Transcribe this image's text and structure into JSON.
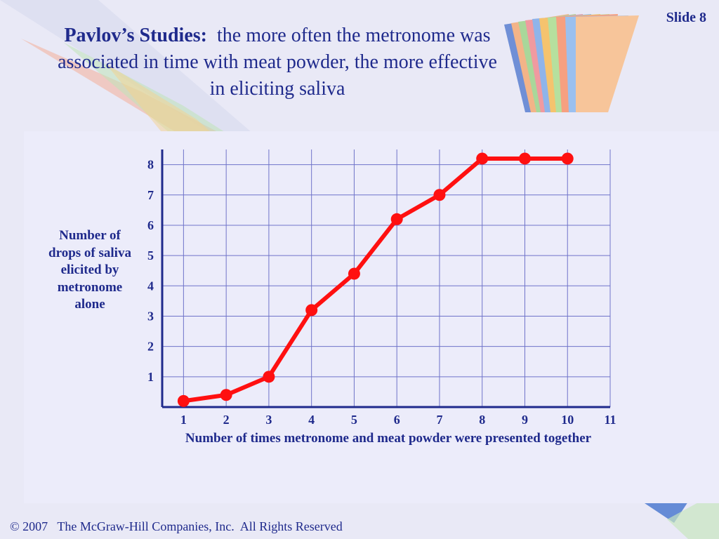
{
  "slide": {
    "number_label": "Slide 8",
    "title_bold": "Pavlov’s Studies:",
    "title_rest": "the more often the metronome was associated in time with meat powder, the more effective in eliciting saliva",
    "footer": "© 2007   The McGraw-Hill Companies, Inc.  All Rights Reserved"
  },
  "colors": {
    "text": "#1f2a8c",
    "axis": "#1f2a8c",
    "grid": "#6f73c9",
    "series": "#ff1010",
    "panel": "#ececfa"
  },
  "chart_data": {
    "type": "line",
    "xlabel": "Number of times metronome and meat powder were presented together",
    "ylabel": "Number of drops of saliva elicited by metronome alone",
    "xlim": [
      0.5,
      11
    ],
    "ylim": [
      0,
      8.5
    ],
    "x_ticks": [
      1,
      2,
      3,
      4,
      5,
      6,
      7,
      8,
      9,
      10,
      11
    ],
    "y_ticks": [
      1,
      2,
      3,
      4,
      5,
      6,
      7,
      8
    ],
    "grid": true,
    "series": [
      {
        "x": [
          1,
          2,
          3,
          4,
          5,
          6,
          7,
          8,
          9,
          10
        ],
        "y": [
          0.2,
          0.4,
          1.0,
          3.2,
          4.4,
          6.2,
          7.0,
          8.2,
          8.2,
          8.2
        ]
      }
    ]
  }
}
